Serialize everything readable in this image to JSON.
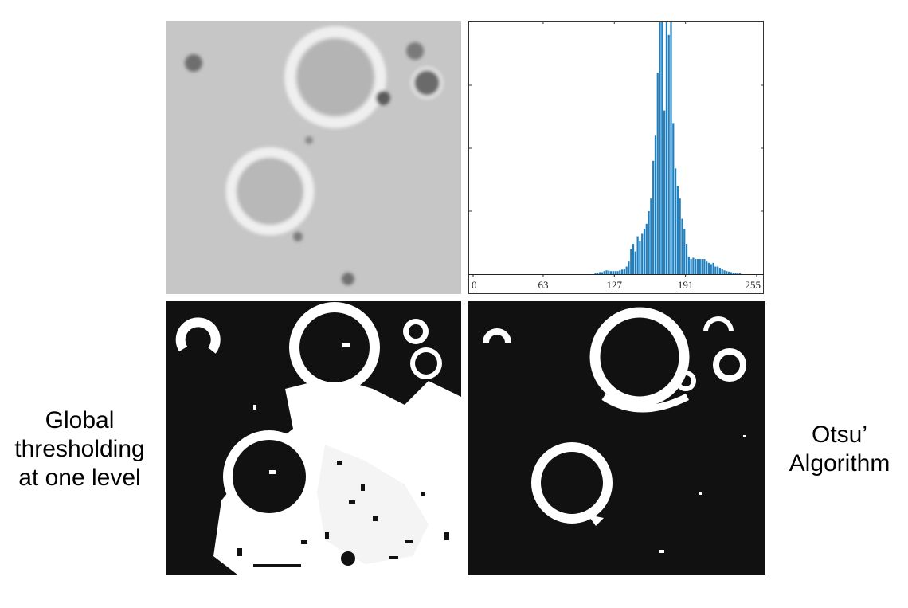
{
  "labels": {
    "left": [
      "Global",
      "thresholding",
      "at one level"
    ],
    "right": [
      "Otsu’",
      "Algorithm"
    ]
  },
  "chart_data": {
    "type": "bar",
    "title": "",
    "xlabel": "",
    "ylabel": "",
    "xticks": [
      "0",
      "63",
      "127",
      "191",
      "255"
    ],
    "xlim": [
      0,
      255
    ],
    "ylim": [
      0,
      1
    ],
    "grid": false,
    "bar_color": "#1f7fbf",
    "x": [
      110,
      112,
      114,
      116,
      118,
      120,
      122,
      124,
      126,
      128,
      130,
      132,
      134,
      136,
      138,
      140,
      142,
      144,
      146,
      148,
      150,
      152,
      154,
      156,
      158,
      160,
      162,
      164,
      166,
      168,
      170,
      172,
      174,
      176,
      178,
      180,
      182,
      184,
      186,
      188,
      190,
      192,
      194,
      196,
      198,
      200,
      202,
      204,
      206,
      208,
      210,
      212,
      214,
      216,
      218,
      220,
      222,
      224,
      226,
      228,
      230,
      232,
      234,
      236,
      238,
      240
    ],
    "values": [
      0.005,
      0.006,
      0.008,
      0.008,
      0.012,
      0.015,
      0.014,
      0.012,
      0.012,
      0.012,
      0.012,
      0.015,
      0.018,
      0.02,
      0.03,
      0.05,
      0.1,
      0.12,
      0.09,
      0.15,
      0.13,
      0.16,
      0.18,
      0.2,
      0.25,
      0.3,
      0.45,
      0.55,
      0.8,
      1.0,
      1.0,
      0.65,
      1.0,
      0.95,
      1.0,
      0.6,
      0.42,
      0.35,
      0.3,
      0.22,
      0.18,
      0.12,
      0.07,
      0.06,
      0.065,
      0.06,
      0.06,
      0.06,
      0.06,
      0.06,
      0.05,
      0.045,
      0.04,
      0.045,
      0.03,
      0.03,
      0.025,
      0.02,
      0.015,
      0.012,
      0.01,
      0.008,
      0.006,
      0.005,
      0.004,
      0.003
    ]
  }
}
